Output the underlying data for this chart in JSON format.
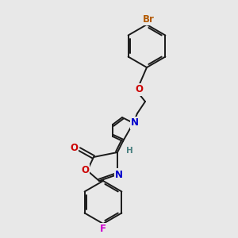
{
  "background_color": "#e8e8e8",
  "bond_color": "#1a1a1a",
  "atom_colors": {
    "Br": "#b35a00",
    "O": "#cc0000",
    "N": "#0000cc",
    "F": "#cc00cc",
    "H": "#4a8080",
    "C": "#1a1a1a"
  },
  "bond_width": 1.4,
  "font_size": 8.5,
  "scale": 1.0
}
